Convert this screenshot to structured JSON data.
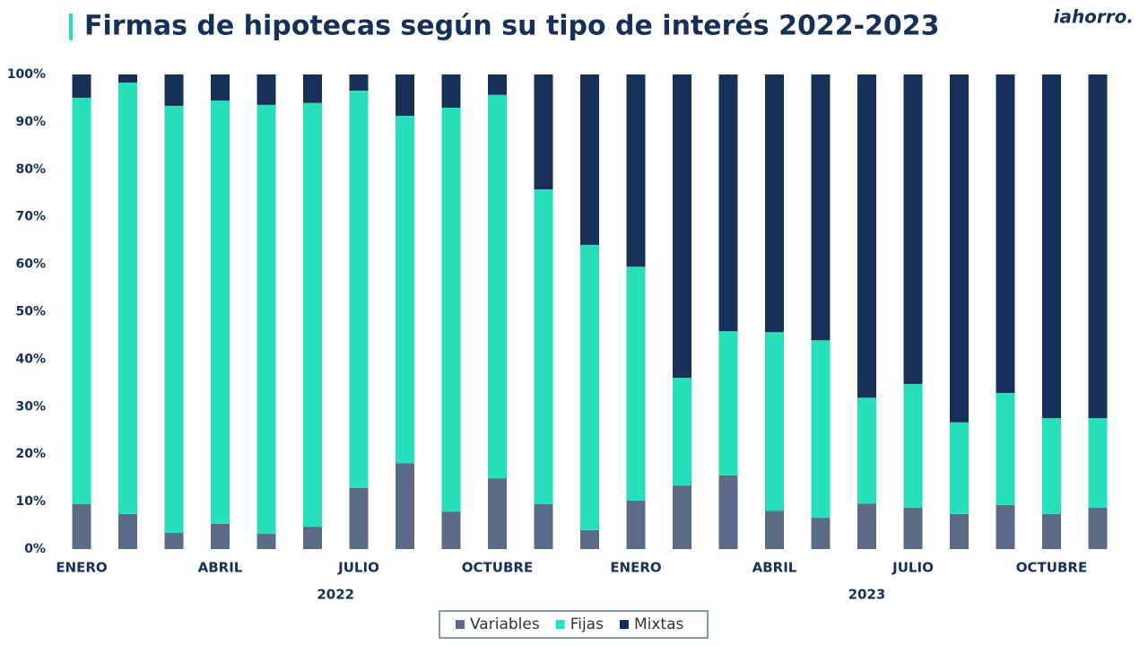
{
  "chart_data": {
    "type": "stacked_bar",
    "title": "Firmas de hipotecas según su tipo de interés 2022-2023",
    "logo": "iahorro.",
    "categories": [
      "ENERO",
      null,
      null,
      "ABRIL",
      null,
      null,
      "JULIO",
      null,
      null,
      "OCTUBRE",
      null,
      null,
      "ENERO",
      null,
      null,
      "ABRIL",
      null,
      null,
      "JULIO",
      null,
      null,
      "OCTUBRE",
      null
    ],
    "groups": [
      {
        "label": "2022",
        "start": 0,
        "end": 11
      },
      {
        "label": "2023",
        "start": 12,
        "end": 22
      }
    ],
    "series": [
      {
        "name": "Variables",
        "color": "#5b6b87",
        "values": [
          9.5,
          7.4,
          3.4,
          5.3,
          3.2,
          4.7,
          12.9,
          18.1,
          7.9,
          14.9,
          9.5,
          4.0,
          10.2,
          13.4,
          15.5,
          8.1,
          6.6,
          9.6,
          8.7,
          7.4,
          9.3,
          7.4,
          8.7
        ]
      },
      {
        "name": "Fijas",
        "color": "#27dfb8",
        "values": [
          85.6,
          90.9,
          90.0,
          89.2,
          90.4,
          89.3,
          83.7,
          73.2,
          85.1,
          80.8,
          66.3,
          60.1,
          49.3,
          22.7,
          30.4,
          37.6,
          37.4,
          22.3,
          26.1,
          19.3,
          23.6,
          20.2,
          18.9
        ]
      },
      {
        "name": "Mixtas",
        "color": "#16305a",
        "values": [
          4.9,
          1.7,
          6.6,
          5.5,
          6.4,
          6.0,
          3.4,
          8.7,
          7.0,
          4.3,
          24.2,
          35.9,
          40.5,
          63.9,
          54.1,
          54.3,
          56.0,
          68.1,
          65.2,
          73.3,
          67.1,
          72.4,
          72.4
        ]
      }
    ],
    "ylim": [
      0,
      100
    ],
    "yticks": [
      {
        "value": 0,
        "label": "0%"
      },
      {
        "value": 10,
        "label": "10%"
      },
      {
        "value": 20,
        "label": "20%"
      },
      {
        "value": 30,
        "label": "30%"
      },
      {
        "value": 40,
        "label": "40%"
      },
      {
        "value": 50,
        "label": "50%"
      },
      {
        "value": 60,
        "label": "60%"
      },
      {
        "value": 70,
        "label": "70%"
      },
      {
        "value": 80,
        "label": "80%"
      },
      {
        "value": 90,
        "label": "90%"
      },
      {
        "value": 100,
        "label": "100%"
      }
    ],
    "legend": "bottom"
  }
}
